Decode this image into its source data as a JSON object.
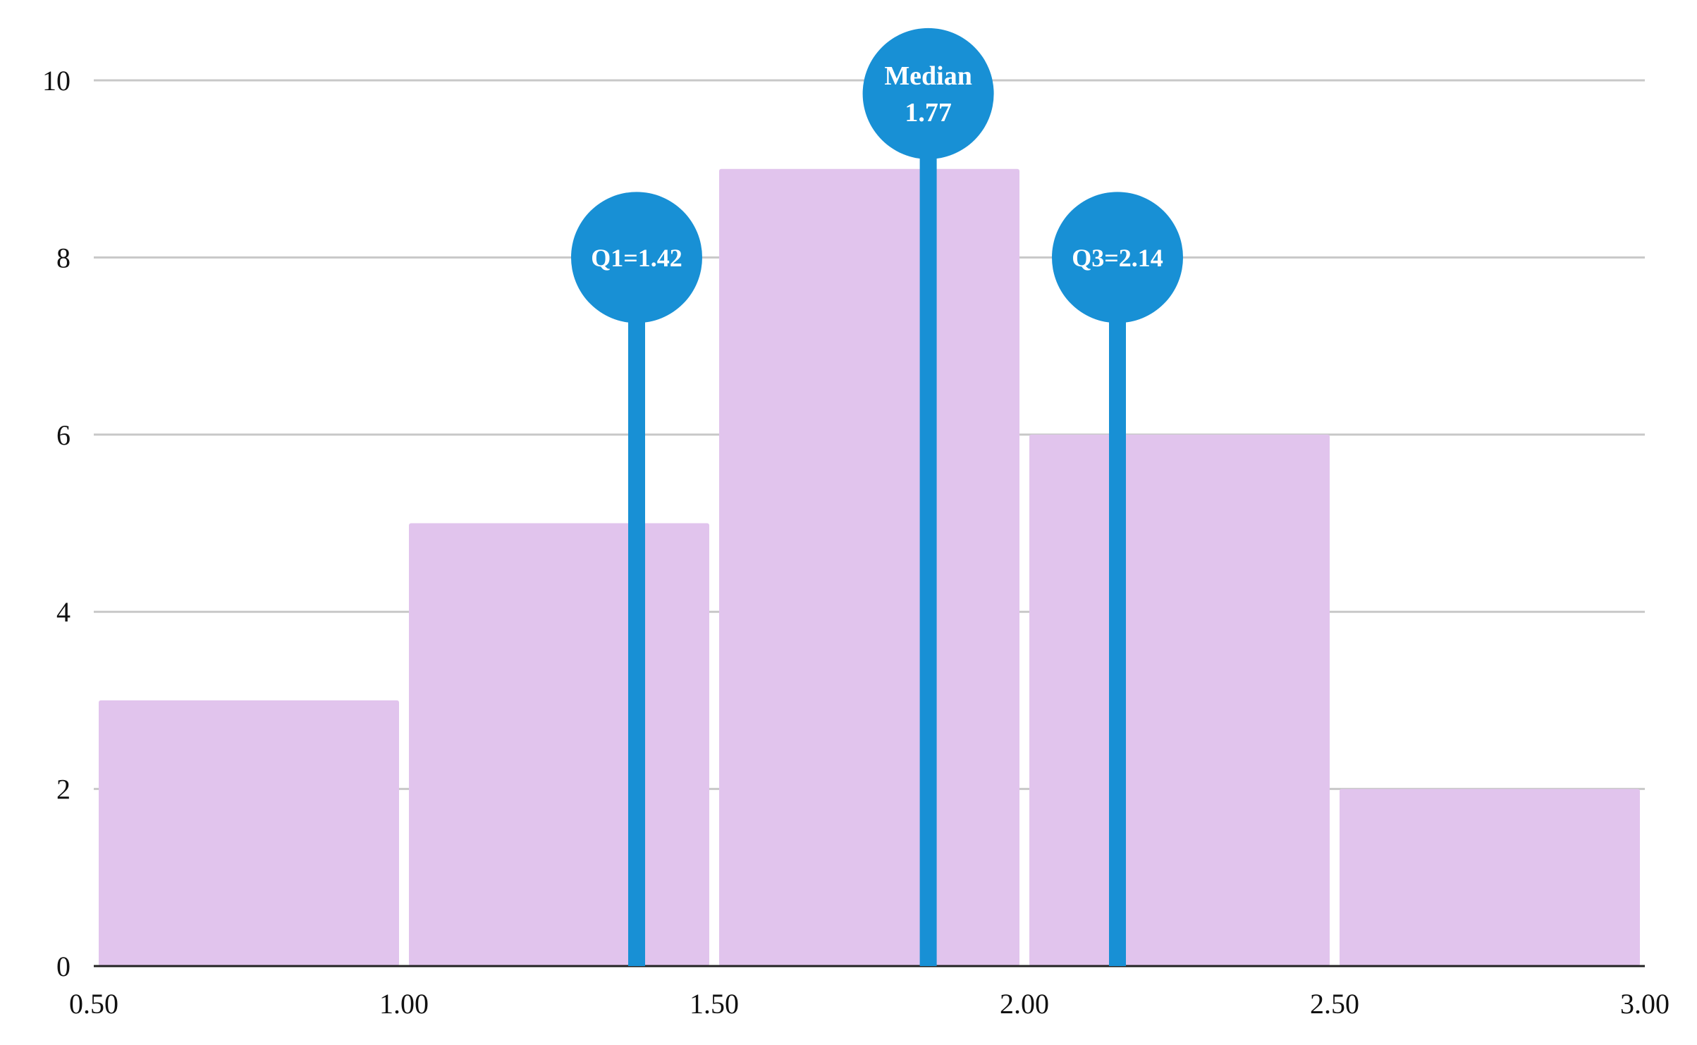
{
  "chart_data": {
    "type": "bar",
    "subtype": "histogram",
    "title": "",
    "xlabel": "",
    "ylabel": "",
    "bins": [
      {
        "x0": 0.5,
        "x1": 1.0,
        "count": 3
      },
      {
        "x0": 1.0,
        "x1": 1.5,
        "count": 5
      },
      {
        "x0": 1.5,
        "x1": 2.0,
        "count": 9
      },
      {
        "x0": 2.0,
        "x1": 2.5,
        "count": 6
      },
      {
        "x0": 2.5,
        "x1": 3.0,
        "count": 2
      }
    ],
    "xlim": [
      0.5,
      3.0
    ],
    "ylim": [
      0,
      10
    ],
    "x_ticks": [
      {
        "value": 0.5,
        "label": "0.50"
      },
      {
        "value": 1.0,
        "label": "1.00"
      },
      {
        "value": 1.5,
        "label": "1.50"
      },
      {
        "value": 2.0,
        "label": "2.00"
      },
      {
        "value": 2.5,
        "label": "2.50"
      },
      {
        "value": 3.0,
        "label": "3.00"
      }
    ],
    "y_ticks": [
      {
        "value": 0,
        "label": "0"
      },
      {
        "value": 2,
        "label": "2"
      },
      {
        "value": 4,
        "label": "4"
      },
      {
        "value": 6,
        "label": "6"
      },
      {
        "value": 8,
        "label": "8"
      },
      {
        "value": 10,
        "label": "10"
      }
    ],
    "grid": true,
    "markers": [
      {
        "name": "Q1",
        "x": 1.42,
        "y": 8,
        "label_lines": [
          "Q1=1.42"
        ]
      },
      {
        "name": "Median",
        "x": 1.77,
        "y": 9.85,
        "label_lines": [
          "Median",
          "1.77"
        ]
      },
      {
        "name": "Q3",
        "x": 2.14,
        "y": 8,
        "label_lines": [
          "Q3=2.14"
        ]
      }
    ],
    "colors": {
      "bar": "#e1c4ed",
      "marker": "#1890d5",
      "grid": "#c8c8c8",
      "axis": "#222222"
    }
  }
}
